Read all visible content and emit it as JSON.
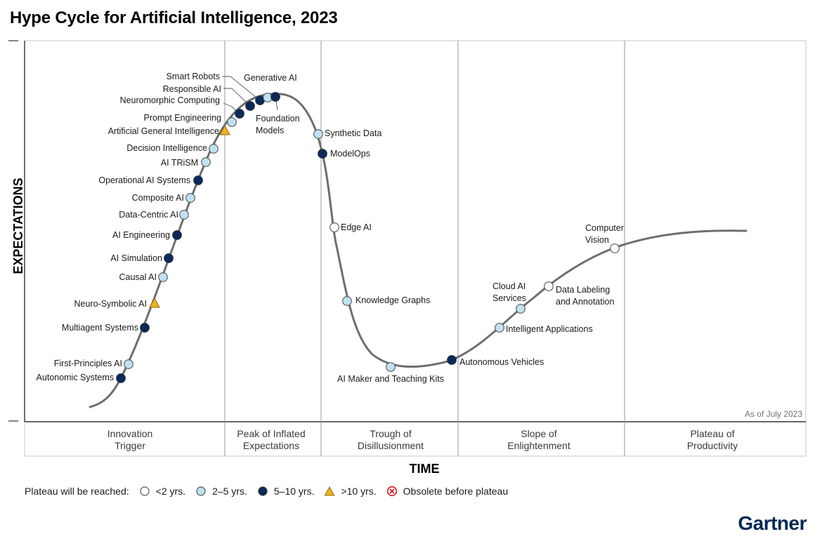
{
  "title": "Hype Cycle for Artificial Intelligence, 2023",
  "colors": {
    "lt2": "#ffffff",
    "y2_5": "#bfe1f2",
    "y5_10": "#0b2a57",
    "gt10": "#f2b01e",
    "obsolete": "#d11b25",
    "curve": "#6e6e6e",
    "brand": "#002856"
  },
  "chart_data": {
    "type": "hype-cycle",
    "title": "Hype Cycle for Artificial Intelligence, 2023",
    "xlabel": "TIME",
    "ylabel": "EXPECTATIONS",
    "as_of": "As of July 2023",
    "phases": [
      "Innovation\nTrigger",
      "Peak of Inflated\nExpectations",
      "Trough of\nDisillusionment",
      "Slope of\nEnlightenment",
      "Plateau of\nProductivity"
    ],
    "legend": {
      "prefix": "Plateau will be reached:",
      "items": [
        {
          "key": "lt2",
          "label": "<2 yrs."
        },
        {
          "key": "2-5",
          "label": "2–5 yrs."
        },
        {
          "key": "5-10",
          "label": "5–10 yrs."
        },
        {
          "key": "gt10",
          "label": ">10 yrs."
        },
        {
          "key": "obsolete",
          "label": "Obsolete before plateau"
        }
      ]
    },
    "points": [
      {
        "name": "Autonomic Systems",
        "category": "5-10"
      },
      {
        "name": "First-Principles AI",
        "category": "2-5"
      },
      {
        "name": "Multiagent Systems",
        "category": "5-10"
      },
      {
        "name": "Neuro-Symbolic AI",
        "category": "gt10"
      },
      {
        "name": "Causal AI",
        "category": "2-5"
      },
      {
        "name": "AI Simulation",
        "category": "5-10"
      },
      {
        "name": "AI Engineering",
        "category": "5-10"
      },
      {
        "name": "Data-Centric AI",
        "category": "2-5"
      },
      {
        "name": "Composite AI",
        "category": "2-5"
      },
      {
        "name": "Operational AI Systems",
        "category": "5-10"
      },
      {
        "name": "AI TRiSM",
        "category": "2-5"
      },
      {
        "name": "Decision Intelligence",
        "category": "2-5"
      },
      {
        "name": "Artificial General Intelligence",
        "category": "gt10"
      },
      {
        "name": "Prompt Engineering",
        "category": "2-5"
      },
      {
        "name": "Neuromorphic Computing",
        "category": "5-10"
      },
      {
        "name": "Responsible AI",
        "category": "5-10"
      },
      {
        "name": "Smart Robots",
        "category": "5-10"
      },
      {
        "name": "Generative AI",
        "category": "2-5"
      },
      {
        "name": "Foundation\nModels",
        "category": "5-10"
      },
      {
        "name": "Synthetic Data",
        "category": "2-5"
      },
      {
        "name": "ModelOps",
        "category": "5-10"
      },
      {
        "name": "Edge AI",
        "category": "lt2"
      },
      {
        "name": "Knowledge Graphs",
        "category": "2-5"
      },
      {
        "name": "AI Maker and Teaching Kits",
        "category": "2-5"
      },
      {
        "name": "Autonomous Vehicles",
        "category": "5-10"
      },
      {
        "name": "Intelligent Applications",
        "category": "2-5"
      },
      {
        "name": "Cloud AI\nServices",
        "category": "2-5"
      },
      {
        "name": "Data Labeling\nand Annotation",
        "category": "lt2"
      },
      {
        "name": "Computer\nVision",
        "category": "lt2"
      }
    ]
  },
  "logo": "Gartner"
}
